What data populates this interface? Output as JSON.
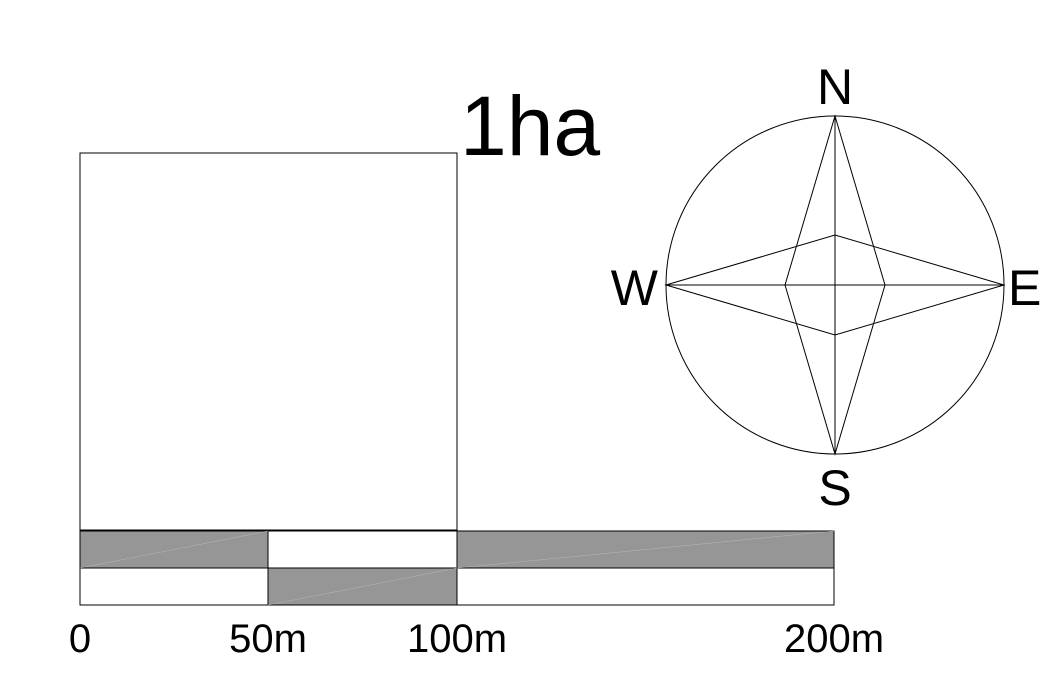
{
  "title": "1ha",
  "compass": {
    "north": "N",
    "south": "S",
    "east": "E",
    "west": "W"
  },
  "scale_bar": {
    "labels": [
      "0",
      "50m",
      "100m",
      "200m"
    ],
    "fill_color": "#969696"
  }
}
